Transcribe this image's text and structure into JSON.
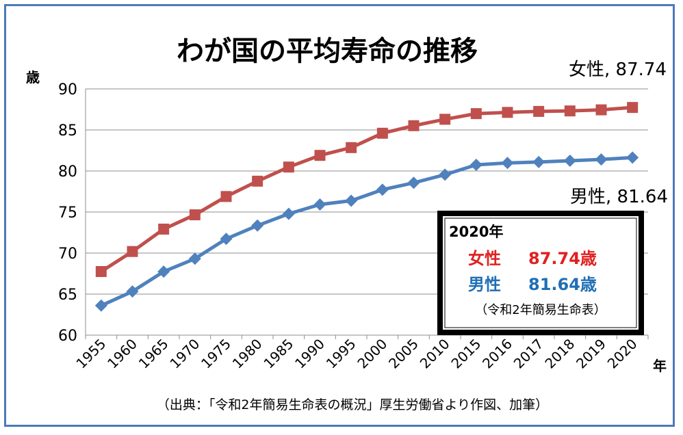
{
  "chart_data": {
    "type": "line",
    "title": "わが国の平均寿命の推移",
    "ylabel": "歳",
    "xlabel": "年",
    "ylim": [
      60,
      90
    ],
    "yticks": [
      60,
      65,
      70,
      75,
      80,
      85,
      90
    ],
    "categories": [
      "1955",
      "1960",
      "1965",
      "1970",
      "1975",
      "1980",
      "1985",
      "1990",
      "1995",
      "2000",
      "2005",
      "2010",
      "2015",
      "2016",
      "2017",
      "2018",
      "2019",
      "2020"
    ],
    "series": [
      {
        "name": "女性",
        "color": "#c0504d",
        "marker": "square",
        "values": [
          67.75,
          70.19,
          72.92,
          74.66,
          76.89,
          78.76,
          80.48,
          81.9,
          82.85,
          84.6,
          85.52,
          86.3,
          86.99,
          87.14,
          87.26,
          87.32,
          87.45,
          87.74
        ],
        "end_label": "女性, 87.74"
      },
      {
        "name": "男性",
        "color": "#4f81bd",
        "marker": "diamond",
        "values": [
          63.6,
          65.32,
          67.74,
          69.31,
          71.73,
          73.35,
          74.78,
          75.92,
          76.38,
          77.72,
          78.56,
          79.55,
          80.75,
          80.98,
          81.09,
          81.25,
          81.41,
          81.64
        ],
        "end_label": "男性, 81.64"
      }
    ],
    "gridlines": true,
    "legend": "none"
  },
  "infobox": {
    "year": "2020年",
    "female_label": "女性",
    "female_value": "87.74歳",
    "male_label": "男性",
    "male_value": "81.64歳",
    "source": "（令和2年簡易生命表）",
    "female_color": "#e02020",
    "male_color": "#1f6fb5"
  },
  "footer": {
    "source": "（出典：「令和2年簡易生命表の概況」厚生労働省より作図、加筆）"
  }
}
